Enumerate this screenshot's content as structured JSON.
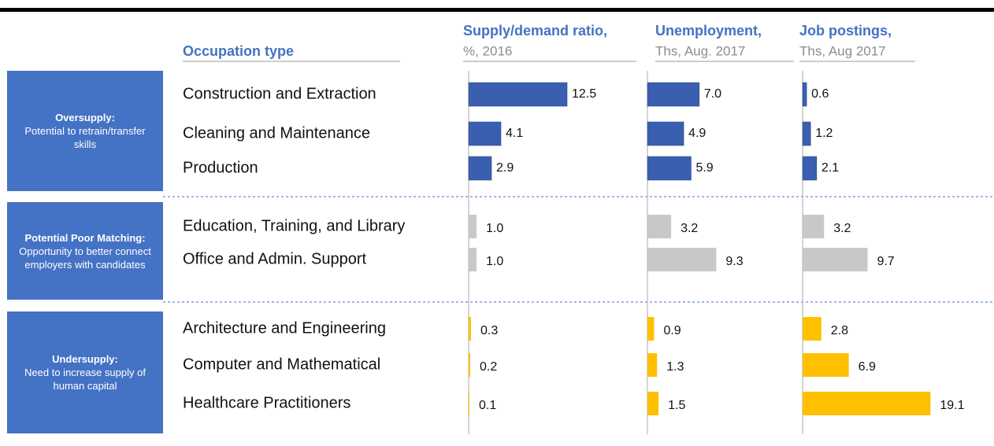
{
  "header": {
    "occupation": "Occupation type",
    "columns": [
      {
        "title": "Supply/demand ratio,",
        "subtitle": "%, 2016"
      },
      {
        "title": "Unemployment,",
        "subtitle": "Ths, Aug. 2017"
      },
      {
        "title": "Job postings,",
        "subtitle": "Ths, Aug 2017"
      }
    ]
  },
  "groups": [
    {
      "title": "Oversupply:",
      "text": "Potential to retrain/transfer skills",
      "color": "#3a5fb0",
      "rows": [
        {
          "label": "Construction and Extraction",
          "values": [
            12.5,
            7,
            0.6
          ],
          "value_labels": [
            "12.5",
            "7.0",
            "0.6"
          ]
        },
        {
          "label": "Cleaning and Maintenance",
          "values": [
            4.1,
            4.9,
            1.2
          ],
          "value_labels": [
            "4.1",
            "4.9",
            "1.2"
          ]
        },
        {
          "label": "Production",
          "values": [
            2.9,
            5.9,
            2.1
          ],
          "value_labels": [
            "2.9",
            "5.9",
            "2.1"
          ]
        }
      ]
    },
    {
      "title": "Potential Poor Matching:",
      "text": "Opportunity to better connect employers with candidates",
      "color": "#c8c8c8",
      "rows": [
        {
          "label": "Education, Training, and Library",
          "values": [
            1,
            3.2,
            3.2
          ],
          "value_labels": [
            "1.0",
            "3.2",
            "3.2"
          ]
        },
        {
          "label": "Office and Admin. Support",
          "values": [
            1,
            9.3,
            9.7
          ],
          "value_labels": [
            "1.0",
            "9.3",
            "9.7"
          ]
        }
      ]
    },
    {
      "title": "Undersupply:",
      "text": "Need to increase supply of human capital",
      "color": "#ffc000",
      "rows": [
        {
          "label": "Architecture and Engineering",
          "values": [
            0.3,
            0.9,
            2.8
          ],
          "value_labels": [
            "0.3",
            "0.9",
            "2.8"
          ]
        },
        {
          "label": "Computer and Mathematical",
          "values": [
            0.2,
            1.3,
            6.9
          ],
          "value_labels": [
            "0.2",
            "1.3",
            "6.9"
          ]
        },
        {
          "label": "Healthcare Practitioners",
          "values": [
            0.1,
            1.5,
            19.1
          ],
          "value_labels": [
            "0.1",
            "1.5",
            "19.1"
          ]
        }
      ]
    }
  ]
}
